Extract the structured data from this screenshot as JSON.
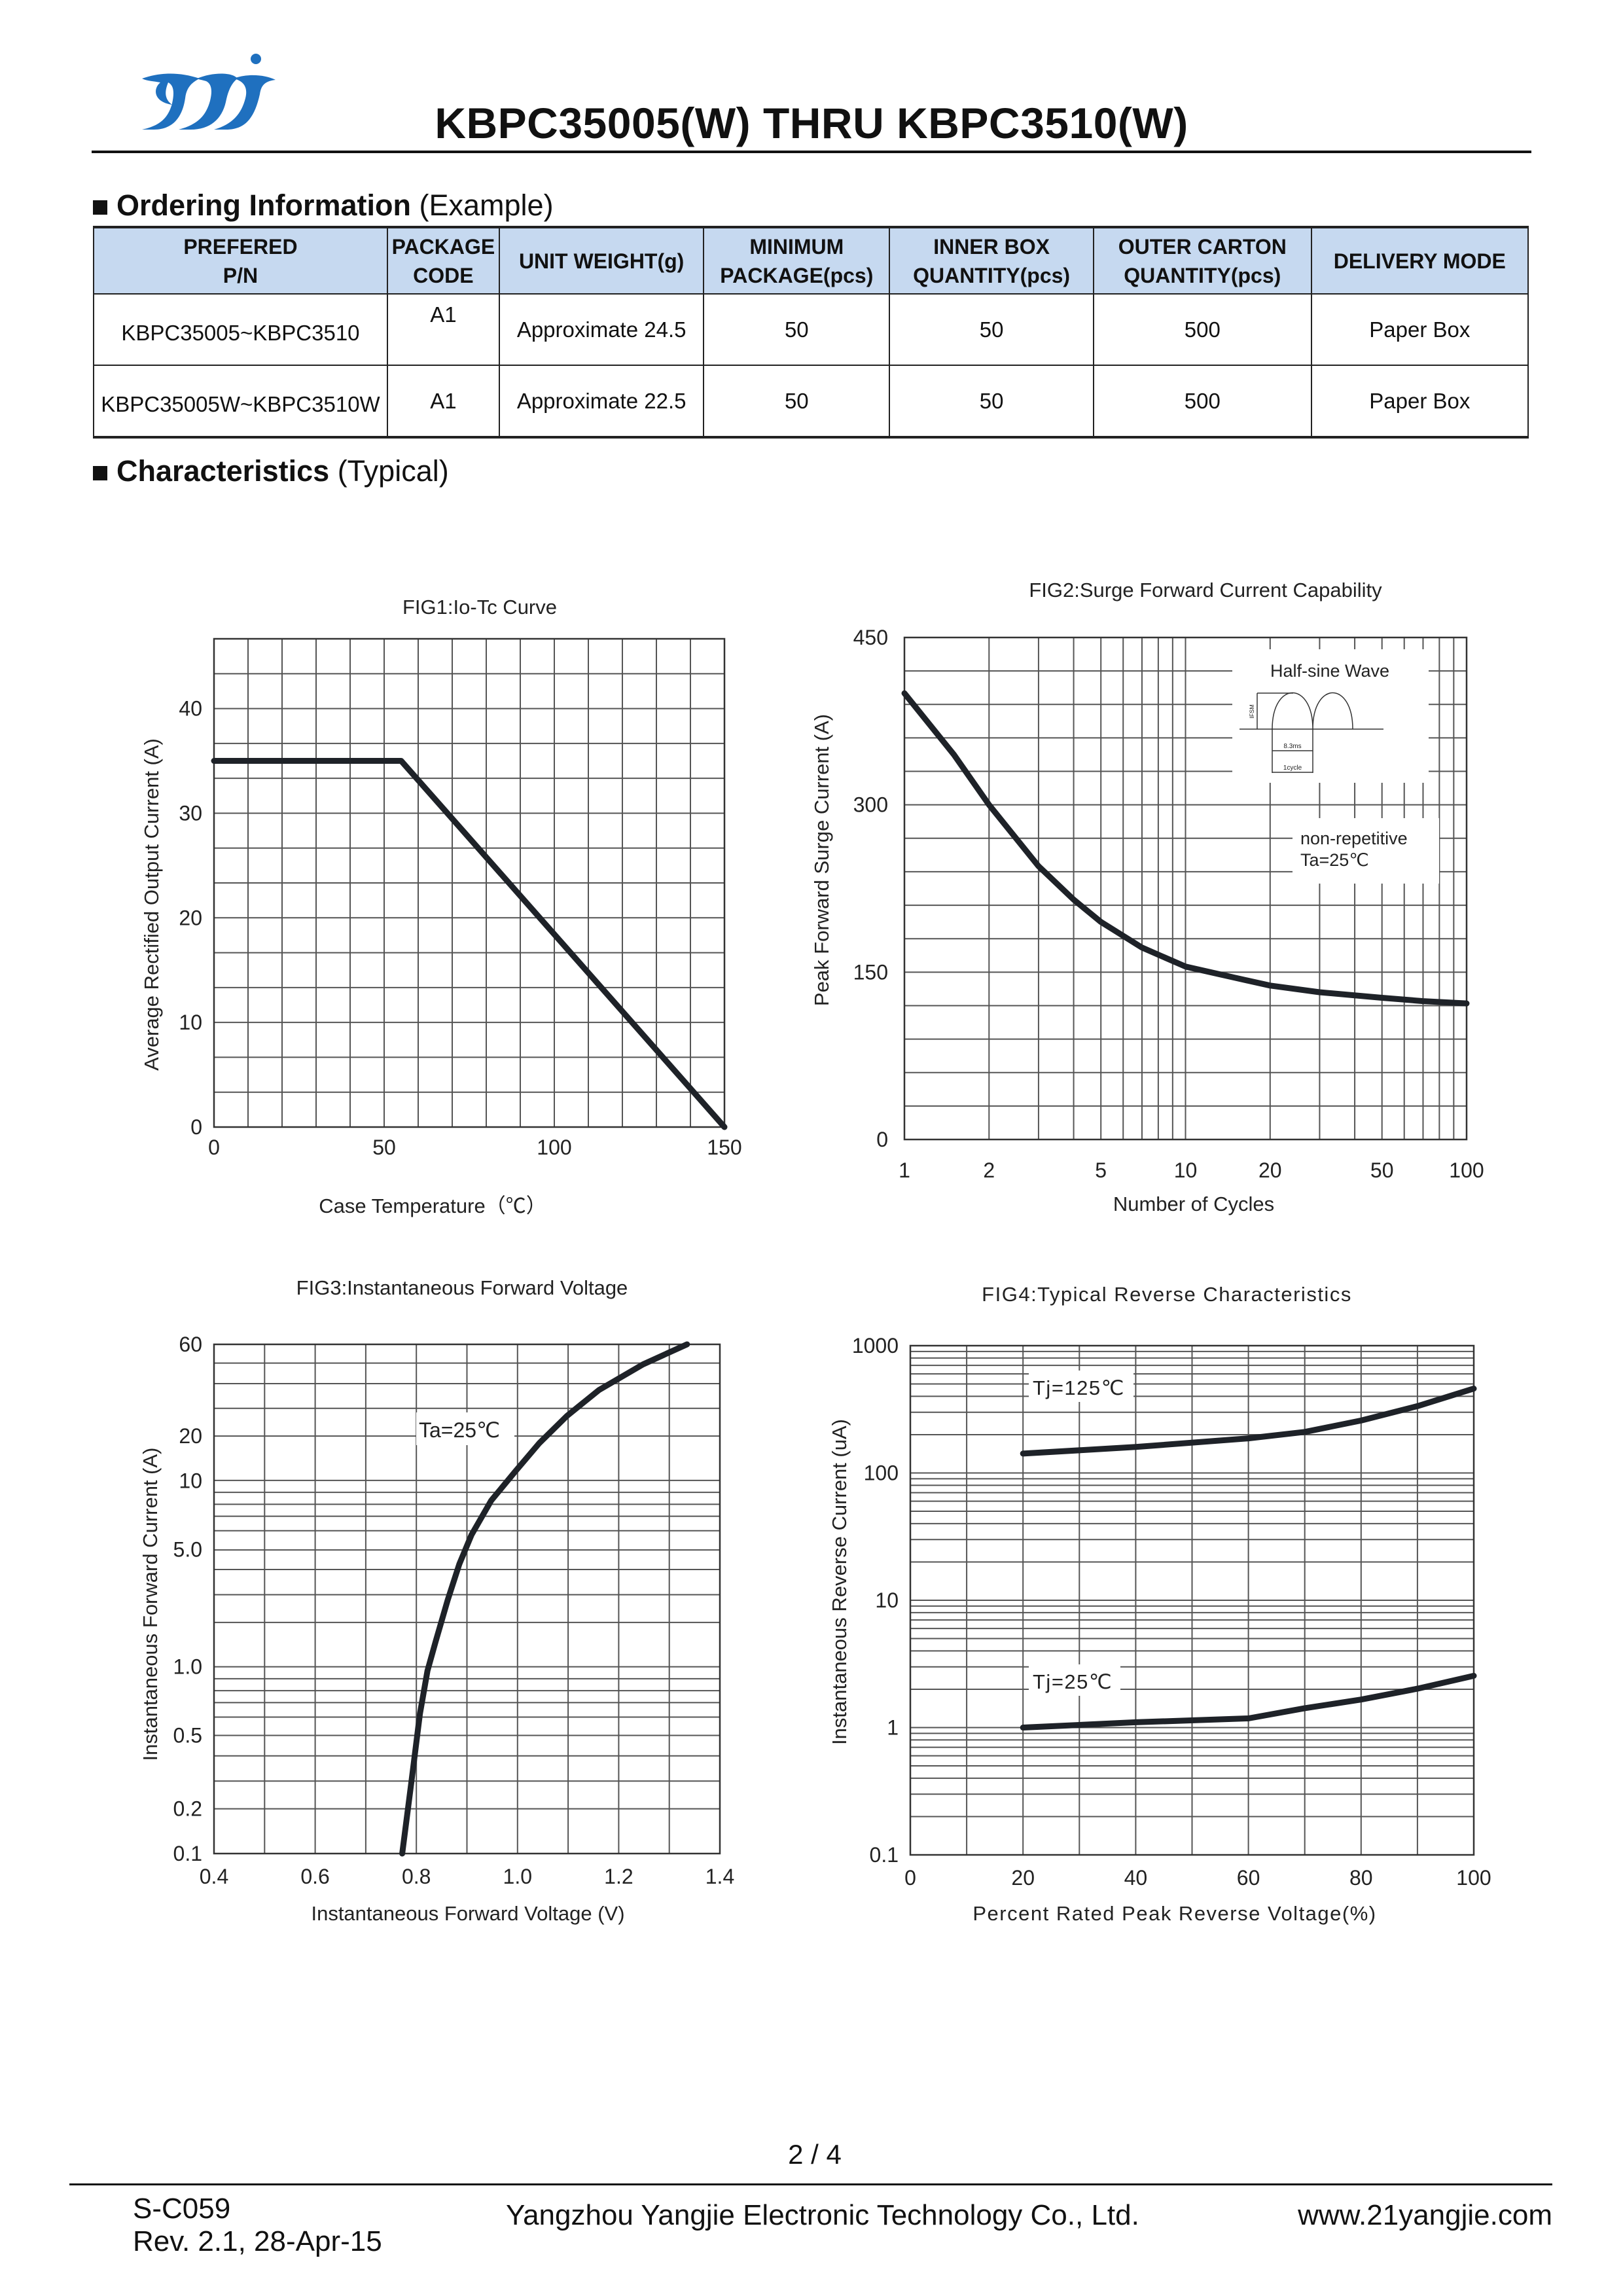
{
  "header": {
    "logo_text": "yj",
    "title": "KBPC35005(W) THRU KBPC3510(W)",
    "brand_color": "#1f70bf"
  },
  "ordering": {
    "heading_bold": "Ordering Information",
    "heading_rest": " (Example)",
    "columns": [
      [
        "PREFERED",
        "P/N"
      ],
      [
        "PACKAGE",
        "CODE"
      ],
      [
        "UNIT WEIGHT(g)"
      ],
      [
        "MINIMUM",
        "PACKAGE(pcs)"
      ],
      [
        "INNER BOX",
        "QUANTITY(pcs)"
      ],
      [
        "OUTER CARTON",
        "QUANTITY(pcs)"
      ],
      [
        "DELIVERY MODE"
      ]
    ],
    "header_bg": "#c6d9f0",
    "rows": [
      [
        "KBPC35005~KBPC3510",
        "A1",
        "Approximate 24.5",
        "50",
        "50",
        "500",
        "Paper Box"
      ],
      [
        "KBPC35005W~KBPC3510W",
        "A1",
        "Approximate 22.5",
        "50",
        "50",
        "500",
        "Paper Box"
      ]
    ]
  },
  "characteristics": {
    "heading_bold": "Characteristics",
    "heading_rest": " (Typical)"
  },
  "chart_data": [
    {
      "type": "line",
      "title": "FIG1:Io-Tc Curve",
      "xlabel": "Case Temperature（℃）",
      "ylabel": "Average Rectified Output Current (A)",
      "xscale": "linear",
      "yscale": "linear",
      "xlim": [
        0,
        150
      ],
      "ylim": [
        0,
        46.67
      ],
      "xticks": [
        0,
        50,
        100,
        150
      ],
      "xtick_labels": [
        "0",
        "50",
        "100",
        "150"
      ],
      "yticks": [
        0,
        10,
        20,
        30,
        40
      ],
      "ytick_labels": [
        "0",
        "10",
        "20",
        "30",
        "40"
      ],
      "grid": true,
      "series": [
        {
          "x": [
            0,
            55,
            150
          ],
          "y": [
            35,
            35,
            0
          ]
        }
      ]
    },
    {
      "type": "line",
      "title": "FIG2:Surge Forward Current Capability",
      "xlabel": "Number of Cycles",
      "ylabel": "Peak Forward Surge Current (A)",
      "xscale": "log",
      "yscale": "linear",
      "xlim": [
        1,
        100
      ],
      "ylim": [
        0,
        450
      ],
      "xticks": [
        1,
        2,
        5,
        10,
        20,
        50,
        100
      ],
      "xtick_labels": [
        "1",
        "2",
        "5",
        "10",
        "20",
        "50",
        "100"
      ],
      "yticks": [
        0,
        150,
        300,
        450
      ],
      "ytick_labels": [
        "0",
        "150",
        "300",
        "450"
      ],
      "grid": true,
      "annotations": {
        "inset_title": "Half-sine Wave",
        "inset_ifsm": "IFSM",
        "inset_period": "8.3ms",
        "inset_cycle": "1cycle",
        "condition_1": "non-repetitive",
        "condition_2": "Ta=25℃"
      },
      "series": [
        {
          "x": [
            1,
            1.5,
            2,
            3,
            4,
            5,
            7,
            10,
            15,
            20,
            30,
            50,
            70,
            100
          ],
          "y": [
            400,
            345,
            300,
            245,
            215,
            195,
            172,
            155,
            145,
            138,
            132,
            127,
            124,
            122
          ]
        }
      ]
    },
    {
      "type": "line",
      "title": "FIG3:Instantaneous Forward Voltage",
      "xlabel": "Instantaneous Forward Voltage (V)",
      "ylabel": "Instantaneous Forward Current (A)",
      "xscale": "linear",
      "yscale": "log",
      "xlim": [
        0.4,
        1.4
      ],
      "ylim": [
        0.1,
        60
      ],
      "xticks": [
        0.4,
        0.6,
        0.8,
        1.0,
        1.2,
        1.4
      ],
      "xtick_labels": [
        "0.4",
        "0.6",
        "0.8",
        "1.0",
        "1.2",
        "1.4"
      ],
      "yticks": [
        0.1,
        0.2,
        0.5,
        1.0,
        5.0,
        10,
        20,
        60
      ],
      "ytick_labels": [
        "0.1",
        "0.2",
        "0.5",
        "1.0",
        "5.0",
        "10",
        "20",
        "60"
      ],
      "grid": true,
      "annotations": {
        "condition": "Ta=25℃"
      },
      "series": [
        {
          "x": [
            0.772,
            0.791,
            0.807,
            0.822,
            0.838,
            0.862,
            0.885,
            0.909,
            0.948,
            0.996,
            1.043,
            1.098,
            1.161,
            1.248,
            1.335
          ],
          "y": [
            0.1,
            0.29,
            0.62,
            0.96,
            1.41,
            2.5,
            4.1,
            5.8,
            8.2,
            11.6,
            17.9,
            25.5,
            34.7,
            47.2,
            60
          ]
        }
      ]
    },
    {
      "type": "line",
      "title": "FIG4:Typical Reverse Characteristics",
      "xlabel": "Percent Rated Peak Reverse Voltage(%)",
      "ylabel": "Instantaneous Reverse Current (uA)",
      "xscale": "linear",
      "yscale": "log",
      "xlim": [
        0,
        100
      ],
      "ylim": [
        0.1,
        1000
      ],
      "xticks": [
        0,
        20,
        40,
        60,
        80,
        100
      ],
      "xtick_labels": [
        "0",
        "20",
        "40",
        "60",
        "80",
        "100"
      ],
      "yticks": [
        0.1,
        1,
        10,
        100,
        1000
      ],
      "ytick_labels": [
        "0.1",
        "1",
        "10",
        "100",
        "1000"
      ],
      "grid": true,
      "series": [
        {
          "name": "Tj=125℃",
          "x": [
            20,
            40,
            60,
            70,
            80,
            90,
            100
          ],
          "y": [
            142,
            160,
            187,
            210,
            258,
            335,
            460
          ]
        },
        {
          "name": "Tj=25℃",
          "x": [
            20,
            40,
            60,
            70,
            80,
            90,
            100
          ],
          "y": [
            1.0,
            1.1,
            1.18,
            1.42,
            1.66,
            2.02,
            2.55
          ]
        }
      ]
    }
  ],
  "footer": {
    "page": "2 / 4",
    "doc_code": "S-C059",
    "revision": "Rev. 2.1, 28-Apr-15",
    "company": "Yangzhou Yangjie Electronic Technology Co., Ltd.",
    "website": "www.21yangjie.com"
  }
}
